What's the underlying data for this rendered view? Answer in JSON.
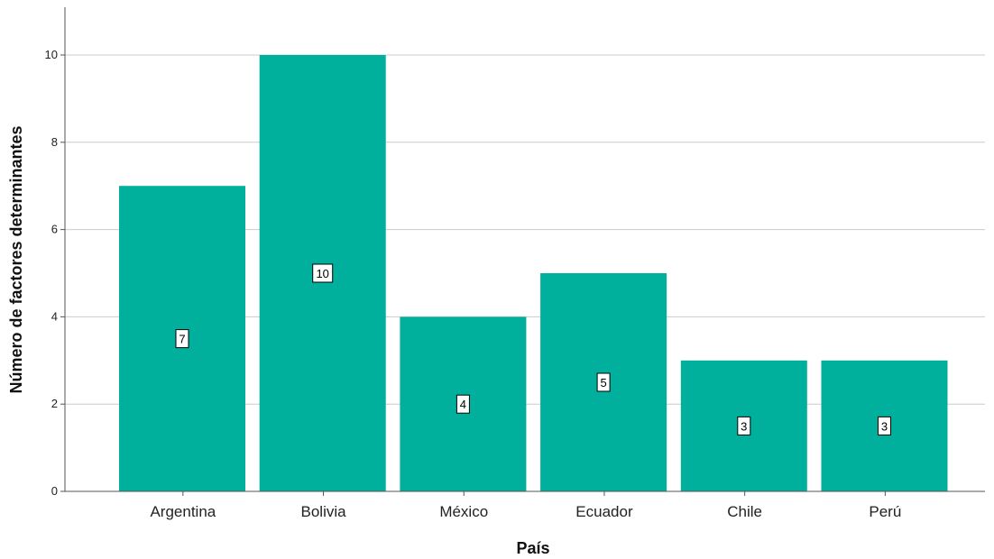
{
  "chart_data": {
    "type": "bar",
    "title": "",
    "xlabel": "País",
    "ylabel": "Número de factores determinantes",
    "categories": [
      "Argentina",
      "Bolivia",
      "México",
      "Ecuador",
      "Chile",
      "Perú"
    ],
    "values": [
      7,
      10,
      4,
      5,
      3,
      3
    ],
    "data_labels": [
      "7",
      "10",
      "4",
      "5",
      "3",
      "3"
    ],
    "ylim": [
      0,
      11
    ],
    "yticks": [
      0,
      2,
      4,
      6,
      8,
      10
    ],
    "ytick_labels": [
      "0",
      "2",
      "4",
      "6",
      "8",
      "10"
    ],
    "grid": true,
    "legend": "none",
    "colors": {
      "bar": "#00b09d",
      "grid": "#cccccc",
      "axis": "#555555"
    }
  }
}
